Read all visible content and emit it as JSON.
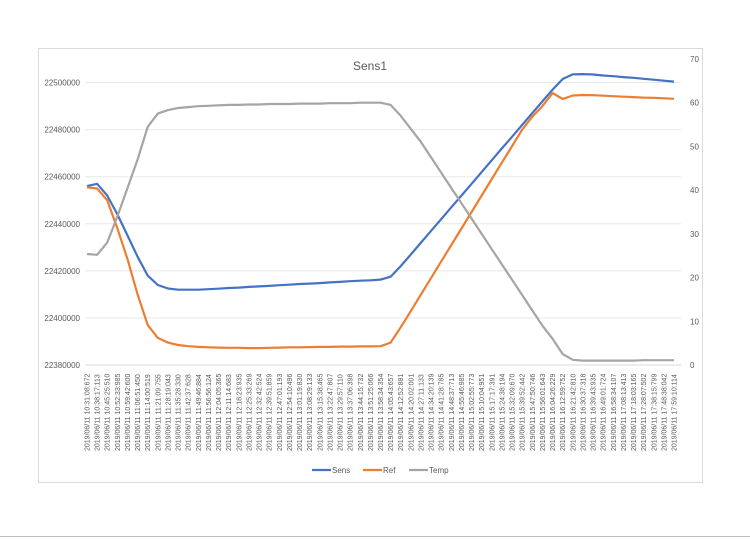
{
  "chart_data": {
    "type": "line",
    "title": "Sens1",
    "xlabel": "",
    "ylabel": "",
    "y2label": "",
    "ylim": [
      22380000,
      22510000
    ],
    "y_ticks": [
      22380000,
      22400000,
      22420000,
      22440000,
      22460000,
      22480000,
      22500000
    ],
    "y2lim": [
      0,
      70
    ],
    "y2_ticks": [
      0,
      10,
      20,
      30,
      40,
      50,
      60,
      70
    ],
    "grid": true,
    "legend_position": "bottom",
    "categories": [
      "2019/06/11 10:31:08:672",
      "2019/06/11 10:38:17:113",
      "2019/06/11 10:45:25:510",
      "2019/06/11 10:52:33:985",
      "2019/06/11 10:59:42:600",
      "2019/06/11 11:06:51:450",
      "2019/06/11 11:14:00:519",
      "2019/06/11 11:21:09:755",
      "2019/06/11 11:28:19:043",
      "2019/06/11 11:35:28:330",
      "2019/06/11 11:42:37:628",
      "2019/06/11 11:49:46:884",
      "2019/06/11 11:56:56:124",
      "2019/06/11 12:04:05:365",
      "2019/06/11 12:11:14:683",
      "2019/06/11 12:18:23:935",
      "2019/06/11 12:25:33:269",
      "2019/06/11 12:32:42:524",
      "2019/06/11 12:39:51:859",
      "2019/06/11 12:47:01:193",
      "2019/06/11 12:54:10:496",
      "2019/06/11 13:01:19:830",
      "2019/06/11 13:08:29:133",
      "2019/06/11 13:15:38:465",
      "2019/06/11 13:22:47:807",
      "2019/06/11 13:29:57:110",
      "2019/06/11 13:37:06:398",
      "2019/06/11 13:44:15:732",
      "2019/06/11 13:51:25:066",
      "2019/06/11 13:58:34:354",
      "2019/06/11 14:05:43:657",
      "2019/06/11 14:12:52:881",
      "2019/06/11 14:20:02:001",
      "2019/06/11 14:27:11:133",
      "2019/06/11 14:34:20:139",
      "2019/06/11 14:41:28:785",
      "2019/06/11 14:48:37:713",
      "2019/06/11 14:55:46:985",
      "2019/06/11 15:02:55:773",
      "2019/06/11 15:10:04:951",
      "2019/06/11 15:17:17:391",
      "2019/06/11 15:24:38:194",
      "2019/06/11 15:32:09:670",
      "2019/06/11 15:39:52:442",
      "2019/06/11 15:47:50:746",
      "2019/06/11 15:56:01:643",
      "2019/06/11 16:04:26:229",
      "2019/06/11 16:12:59:752",
      "2019/06/11 16:21:42:810",
      "2019/06/11 16:30:37:318",
      "2019/06/11 16:39:43:935",
      "2019/06/11 16:49:01:724",
      "2019/06/11 16:58:34:107",
      "2019/06/11 17:08:13:413",
      "2019/06/11 17:18:03:165",
      "2019/06/11 17:28:07:502",
      "2019/06/11 17:38:15:799",
      "2019/06/11 17:48:38:042",
      "2019/06/11 17:59:10:114"
    ],
    "series": [
      {
        "name": "Sens",
        "axis": "left",
        "color": "#4472c4",
        "values": [
          22456000,
          22457000,
          22452000,
          22444000,
          22435000,
          22426000,
          22418000,
          22414000,
          22412500,
          22412000,
          22412000,
          22412000,
          22412200,
          22412400,
          22412700,
          22412900,
          22413200,
          22413400,
          22413600,
          22413900,
          22414100,
          22414400,
          22414600,
          22414800,
          22415100,
          22415300,
          22415600,
          22415800,
          22416000,
          22416300,
          22417500,
          22422000,
          22427000,
          22432000,
          22437000,
          22442000,
          22447000,
          22452000,
          22457000,
          22462000,
          22467000,
          22472000,
          22477000,
          22482000,
          22487000,
          22492000,
          22497000,
          22501500,
          22503500,
          22503600,
          22503400,
          22503000,
          22502700,
          22502300,
          22502000,
          22501600,
          22501200,
          22500800,
          22500400
        ]
      },
      {
        "name": "Ref",
        "axis": "left",
        "color": "#ed7d31",
        "values": [
          22455500,
          22455000,
          22450000,
          22438000,
          22425000,
          22410000,
          22397000,
          22391500,
          22389500,
          22388500,
          22388000,
          22387700,
          22387500,
          22387400,
          22387300,
          22387300,
          22387200,
          22387200,
          22387300,
          22387400,
          22387500,
          22387500,
          22387600,
          22387700,
          22387700,
          22387800,
          22387800,
          22387900,
          22387900,
          22388000,
          22389500,
          22396000,
          22403000,
          22410000,
          22417000,
          22424000,
          22431000,
          22438000,
          22445000,
          22452000,
          22459000,
          22466000,
          22473000,
          22480000,
          22485500,
          22490000,
          22495500,
          22493000,
          22494500,
          22494700,
          22494600,
          22494400,
          22494200,
          22494000,
          22493800,
          22493600,
          22493500,
          22493300,
          22493100
        ]
      },
      {
        "name": "Temp",
        "axis": "right",
        "color": "#a5a5a5",
        "values": [
          25.4,
          25.2,
          28,
          34,
          40.5,
          47,
          54.5,
          57.5,
          58.3,
          58.8,
          59.0,
          59.2,
          59.3,
          59.4,
          59.5,
          59.5,
          59.6,
          59.6,
          59.7,
          59.7,
          59.7,
          59.8,
          59.8,
          59.8,
          59.9,
          59.9,
          59.9,
          60,
          60,
          60,
          59.5,
          57,
          54,
          51,
          47.5,
          44,
          40.5,
          37,
          33.5,
          30,
          26.5,
          23,
          19.5,
          16,
          12.5,
          9,
          6,
          2.5,
          1.2,
          1.0,
          1.0,
          1.0,
          1.0,
          1.0,
          1.0,
          1.1,
          1.1,
          1.1,
          1.1
        ]
      }
    ]
  }
}
